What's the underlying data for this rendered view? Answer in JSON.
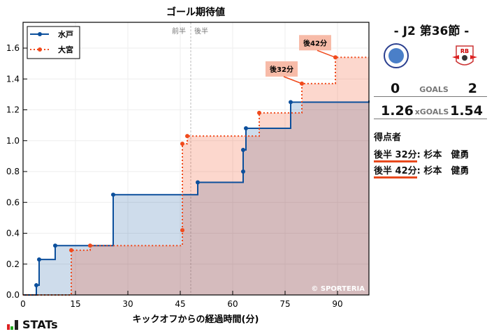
{
  "chart_data": {
    "type": "line",
    "subtype": "step-area",
    "title": "ゴール期待値",
    "xlabel": "キックオフからの経過時間(分)",
    "ylabel": "",
    "xlim": [
      0,
      99
    ],
    "ylim": [
      0,
      1.77
    ],
    "xticks": [
      0,
      15,
      30,
      45,
      60,
      75,
      90
    ],
    "yticks": [
      0.0,
      0.2,
      0.4,
      0.6,
      0.8,
      1.0,
      1.2,
      1.4,
      1.6
    ],
    "grid": true,
    "legend_position": "upper left",
    "halftime_marker": {
      "x": 48,
      "labels": [
        "前半",
        "後半"
      ]
    },
    "series": [
      {
        "name": "水戸",
        "color": "#0b4f9c",
        "style": "solid",
        "x": [
          0,
          3.8,
          4.6,
          9.2,
          25.8,
          50.0,
          63.0,
          63.0,
          63.8,
          76.6,
          99
        ],
        "y": [
          0,
          0.063,
          0.23,
          0.32,
          0.65,
          0.73,
          0.8,
          0.94,
          1.08,
          1.25,
          1.26
        ]
      },
      {
        "name": "大宮",
        "color": "#f04a1c",
        "style": "dotted",
        "x": [
          0,
          13.8,
          19.2,
          45.6,
          45.6,
          47.0,
          67.6,
          79.8,
          89.4,
          99
        ],
        "y": [
          0,
          0.29,
          0.32,
          0.42,
          0.98,
          1.03,
          1.18,
          1.37,
          1.54,
          1.54
        ]
      }
    ],
    "annotations": [
      {
        "text": "後32分",
        "x": 79.8,
        "y": 1.37
      },
      {
        "text": "後42分",
        "x": 89.4,
        "y": 1.54
      }
    ],
    "watermark": "© SPORTERIA"
  },
  "header": {
    "round": "-  J2 第36節  -"
  },
  "teams": {
    "home": {
      "name": "水戸",
      "goals": "0",
      "xgoals": "1.26"
    },
    "away": {
      "name": "大宮",
      "goals": "2",
      "xgoals": "1.54"
    }
  },
  "labels": {
    "goals": "GOALS",
    "xgoals": "xGOALS",
    "scorers_title": "得点者"
  },
  "scorers": [
    {
      "time": "後半 32分",
      "name": ": 杉本　健勇"
    },
    {
      "time": "後半 42分",
      "name": ": 杉本　健勇"
    }
  ],
  "footer": {
    "brand": "STATs"
  }
}
